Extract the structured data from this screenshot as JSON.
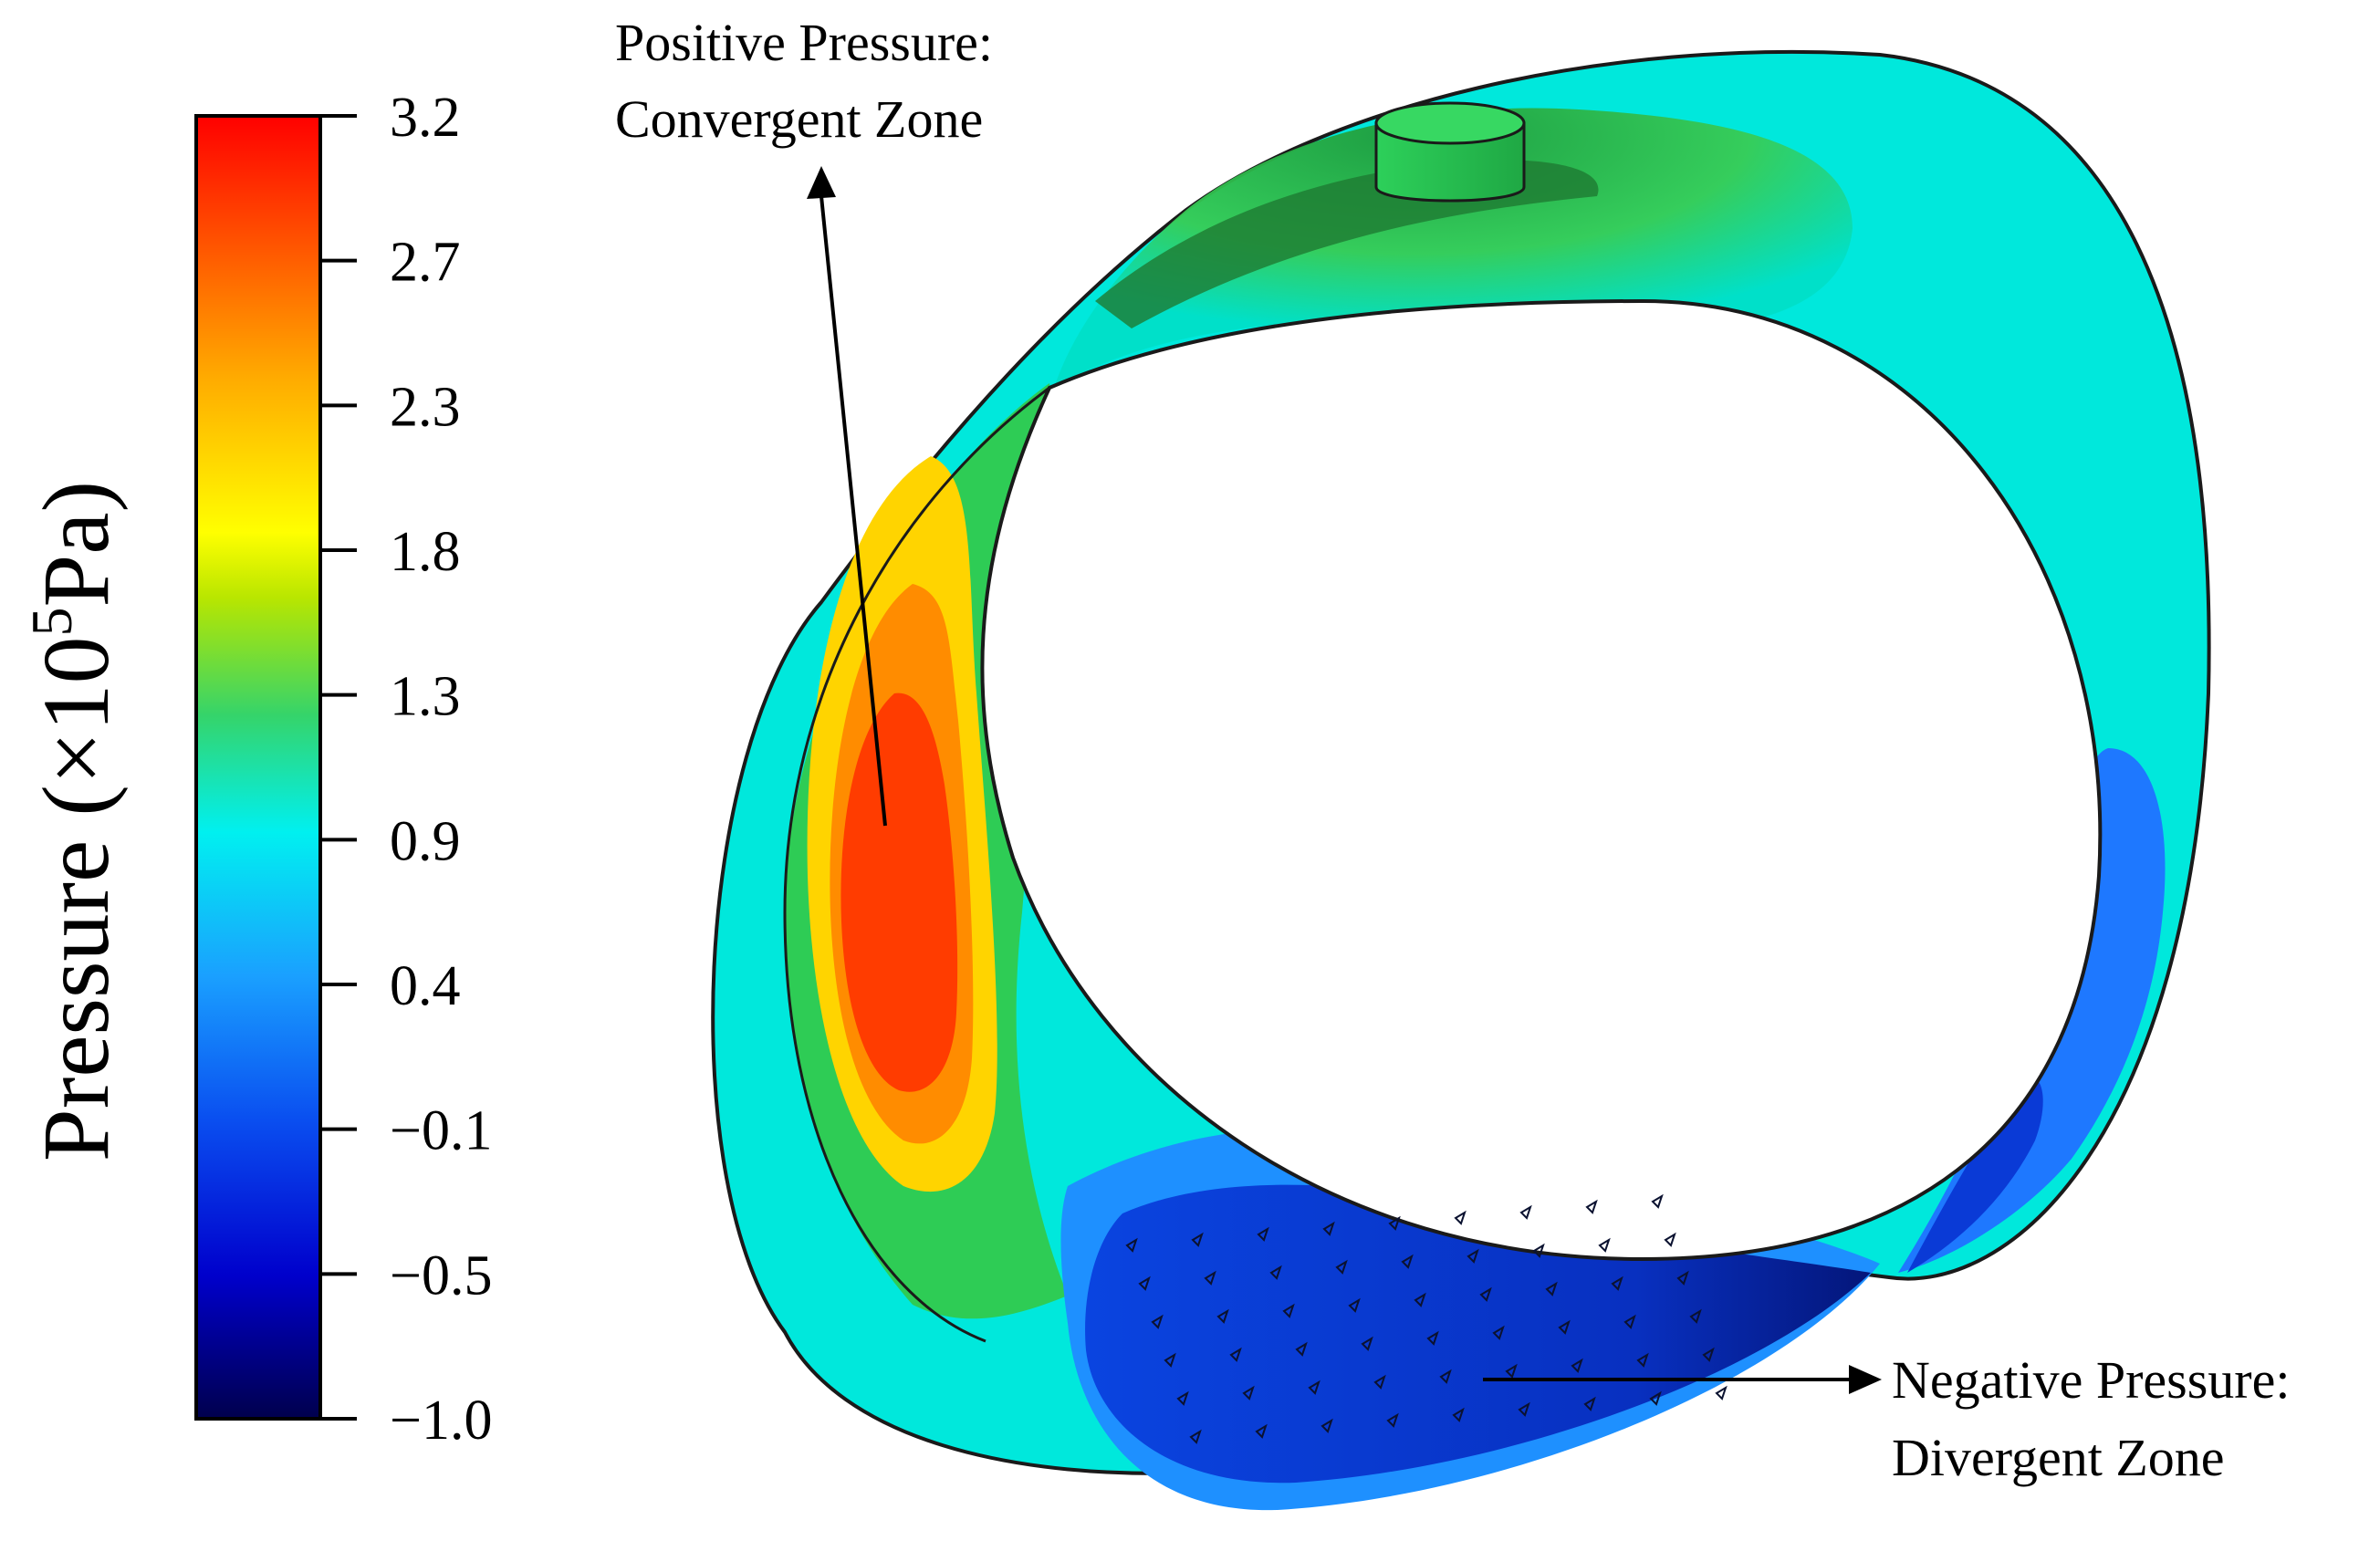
{
  "figure": {
    "type": "pressure contour on journal bearing",
    "colorbar": {
      "title_prefix": "Pressure (×10",
      "title_exponent": "5",
      "title_suffix": "Pa)",
      "ticks": [
        "3.2",
        "2.7",
        "2.3",
        "1.8",
        "1.3",
        "0.9",
        "0.4",
        "−0.1",
        "−0.5",
        "−1.0"
      ],
      "tick_values": [
        3.2,
        2.7,
        2.3,
        1.8,
        1.3,
        0.9,
        0.4,
        -0.1,
        -0.5,
        -1.0
      ],
      "range": [
        -1.0,
        3.2
      ],
      "colormap": [
        "#00004d",
        "#0000cc",
        "#1a7fe8",
        "#00e6e6",
        "#35d46a",
        "#b8e600",
        "#ffff00",
        "#ffaa00",
        "#ff5500",
        "#ff0000"
      ]
    },
    "annotations": {
      "positive": {
        "line1": "Positive Pressure:",
        "line2": "Convergent Zone"
      },
      "negative": {
        "line1": "Negative Pressure:",
        "line2": "Divergent Zone"
      }
    },
    "colors": {
      "peak": "#ff3c00",
      "orange": "#ff8c00",
      "yellow": "#ffd400",
      "green": "#2ecc55",
      "cyan": "#00e8dc",
      "light_blue": "#1e90ff",
      "blue": "#0a3ad6",
      "dark_blue": "#061a8a",
      "outline": "#1a1a1a"
    }
  }
}
